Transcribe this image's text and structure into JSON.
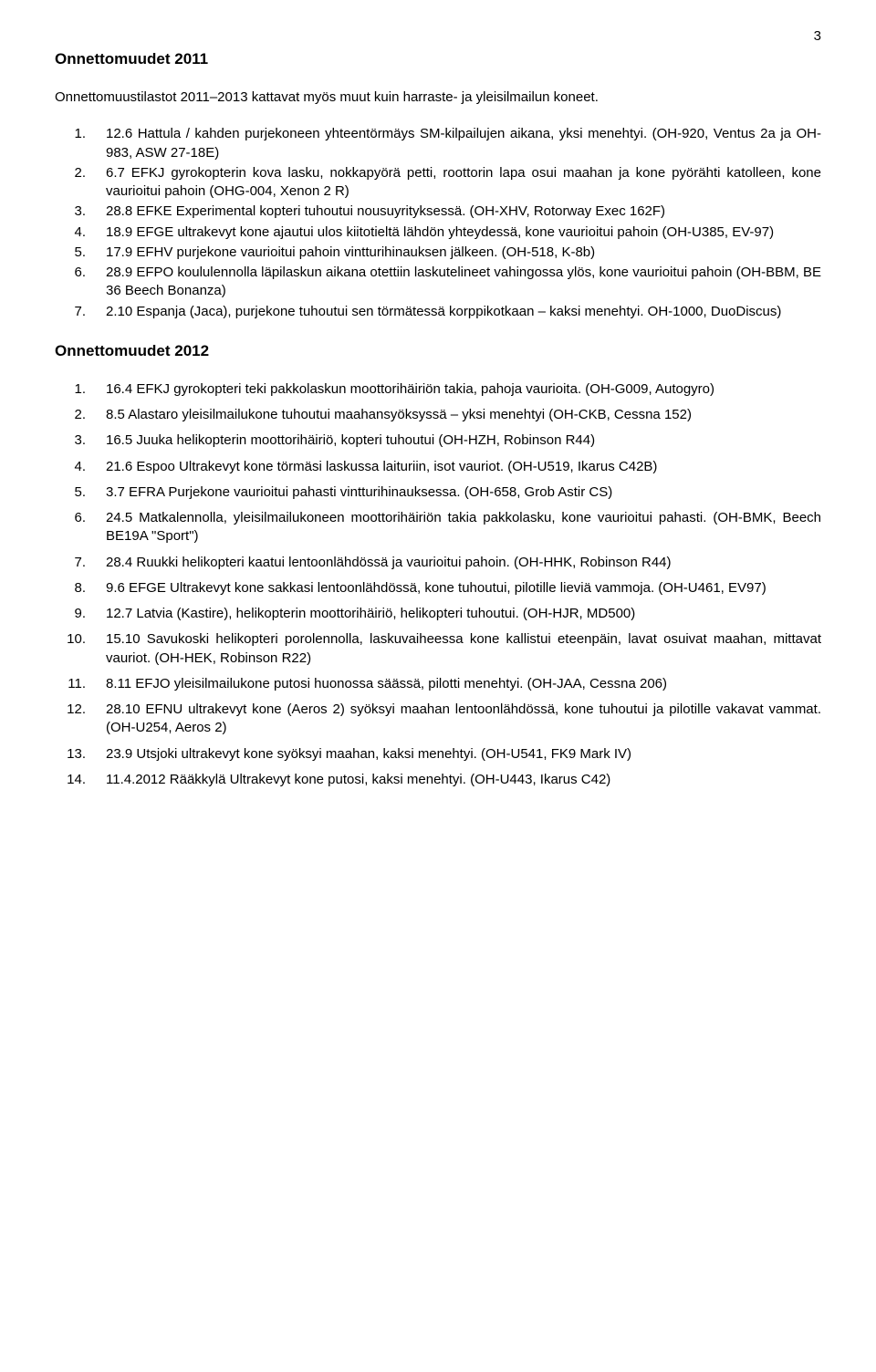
{
  "page_number": "3",
  "section1": {
    "title": "Onnettomuudet 2011",
    "intro": "Onnettomuustilastot 2011–2013 kattavat myös muut kuin harraste- ja yleisilmailun koneet.",
    "items": [
      "12.6 Hattula / kahden purjekoneen yhteentörmäys SM-kilpailujen aikana, yksi menehtyi. (OH-920, Ventus 2a ja OH-983, ASW 27-18E)",
      "6.7 EFKJ gyrokopterin kova lasku, nokkapyörä petti, roottorin lapa osui maahan ja kone pyörähti katolleen, kone vaurioitui pahoin (OHG-004, Xenon 2 R)",
      "28.8 EFKE Experimental kopteri tuhoutui nousuyrityksessä. (OH-XHV, Rotorway Exec 162F)",
      "18.9 EFGE ultrakevyt kone ajautui ulos kiitotieltä lähdön yhteydessä, kone vaurioitui pahoin (OH-U385, EV-97)",
      "17.9 EFHV purjekone vaurioitui pahoin vintturihinauksen jälkeen. (OH-518, K-8b)",
      "28.9 EFPO koululennolla läpilaskun aikana otettiin laskutelineet vahingossa ylös, kone vaurioitui pahoin (OH-BBM, BE 36 Beech Bonanza)",
      "2.10 Espanja (Jaca), purjekone tuhoutui sen törmätessä korppikotkaan – kaksi menehtyi. OH-1000, DuoDiscus)"
    ]
  },
  "section2": {
    "title": "Onnettomuudet 2012",
    "items": [
      "16.4 EFKJ gyrokopteri teki pakkolaskun moottorihäiriön takia, pahoja vaurioita. (OH-G009, Autogyro)",
      "8.5 Alastaro yleisilmailukone tuhoutui maahansyöksyssä – yksi menehtyi (OH-CKB, Cessna 152)",
      "16.5 Juuka helikopterin moottorihäiriö, kopteri tuhoutui (OH-HZH, Robinson R44)",
      "21.6 Espoo Ultrakevyt kone törmäsi laskussa laituriin, isot vauriot. (OH-U519, Ikarus C42B)",
      "3.7 EFRA Purjekone vaurioitui pahasti vintturihinauksessa. (OH-658, Grob Astir CS)",
      "24.5 Matkalennolla, yleisilmailukoneen moottorihäiriön takia pakkolasku, kone vaurioitui pahasti. (OH-BMK, Beech BE19A \"Sport\")",
      "28.4 Ruukki helikopteri kaatui lentoonlähdössä ja vaurioitui pahoin. (OH-HHK, Robinson R44)",
      "9.6 EFGE Ultrakevyt kone sakkasi lentoonlähdössä, kone tuhoutui, pilotille lieviä vammoja. (OH-U461, EV97)",
      "12.7 Latvia (Kastire), helikopterin moottorihäiriö, helikopteri tuhoutui. (OH-HJR, MD500)",
      "15.10 Savukoski helikopteri porolennolla, laskuvaiheessa kone kallistui eteenpäin, lavat osuivat maahan, mittavat vauriot. (OH-HEK, Robinson R22)",
      "8.11 EFJO yleisilmailukone putosi huonossa säässä, pilotti menehtyi. (OH-JAA, Cessna 206)",
      "28.10 EFNU ultrakevyt kone (Aeros 2) syöksyi maahan lentoonlähdössä, kone tuhoutui ja pilotille vakavat vammat. (OH-U254, Aeros 2)",
      "23.9 Utsjoki ultrakevyt kone syöksyi maahan, kaksi menehtyi. (OH-U541, FK9 Mark IV)",
      "11.4.2012 Rääkkylä Ultrakevyt kone putosi, kaksi menehtyi. (OH-U443, Ikarus C42)"
    ]
  }
}
